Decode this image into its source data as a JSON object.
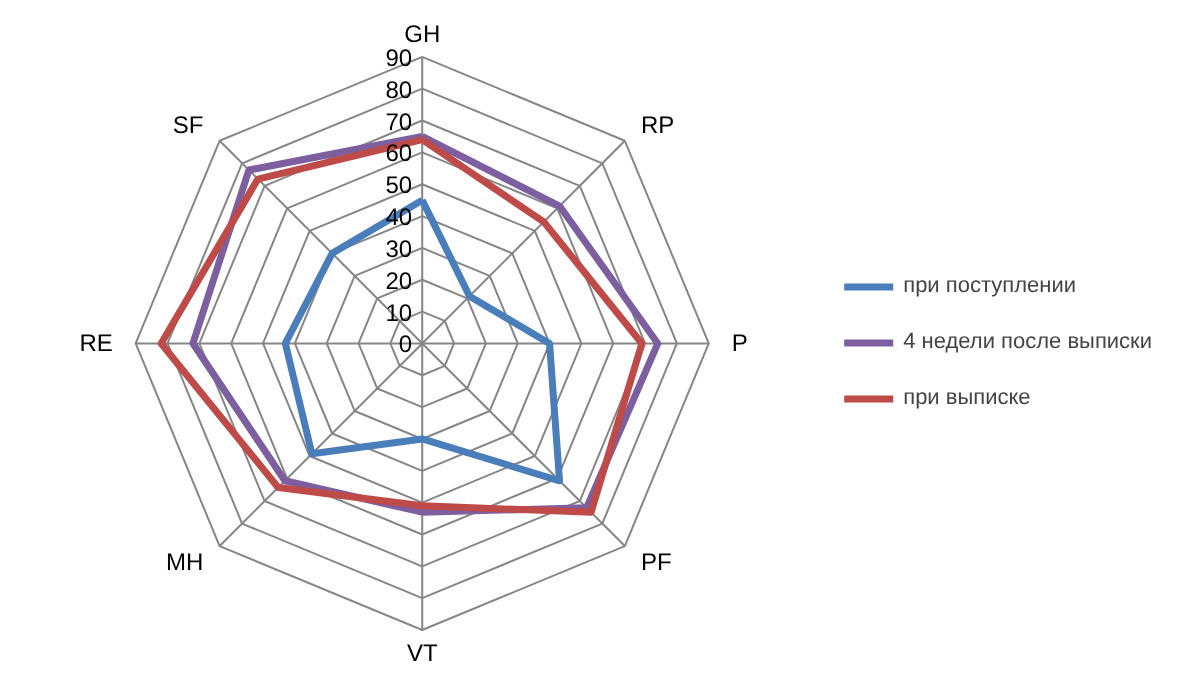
{
  "chart_data": {
    "type": "radar",
    "categories": [
      "GH",
      "RP",
      "P",
      "PF",
      "VT",
      "MH",
      "RE",
      "SF"
    ],
    "ylim": [
      0,
      90
    ],
    "yticks": [
      0,
      10,
      20,
      30,
      40,
      50,
      60,
      70,
      80,
      90
    ],
    "grid": true,
    "legend": "right",
    "marker": "none",
    "line_style": "solid",
    "series": [
      {
        "name": "при поступлении",
        "color": "#4a7ebb",
        "values": [
          45,
          21,
          40,
          61,
          30,
          49,
          43,
          40
        ]
      },
      {
        "name": "4 недели после выписки",
        "color": "#7d5fa0",
        "values": [
          65,
          61,
          74,
          73,
          53,
          61,
          72,
          77
        ]
      },
      {
        "name": "при выписке",
        "color": "#be4b48",
        "values": [
          64,
          54,
          69,
          75,
          51,
          64,
          82,
          73
        ]
      }
    ]
  }
}
